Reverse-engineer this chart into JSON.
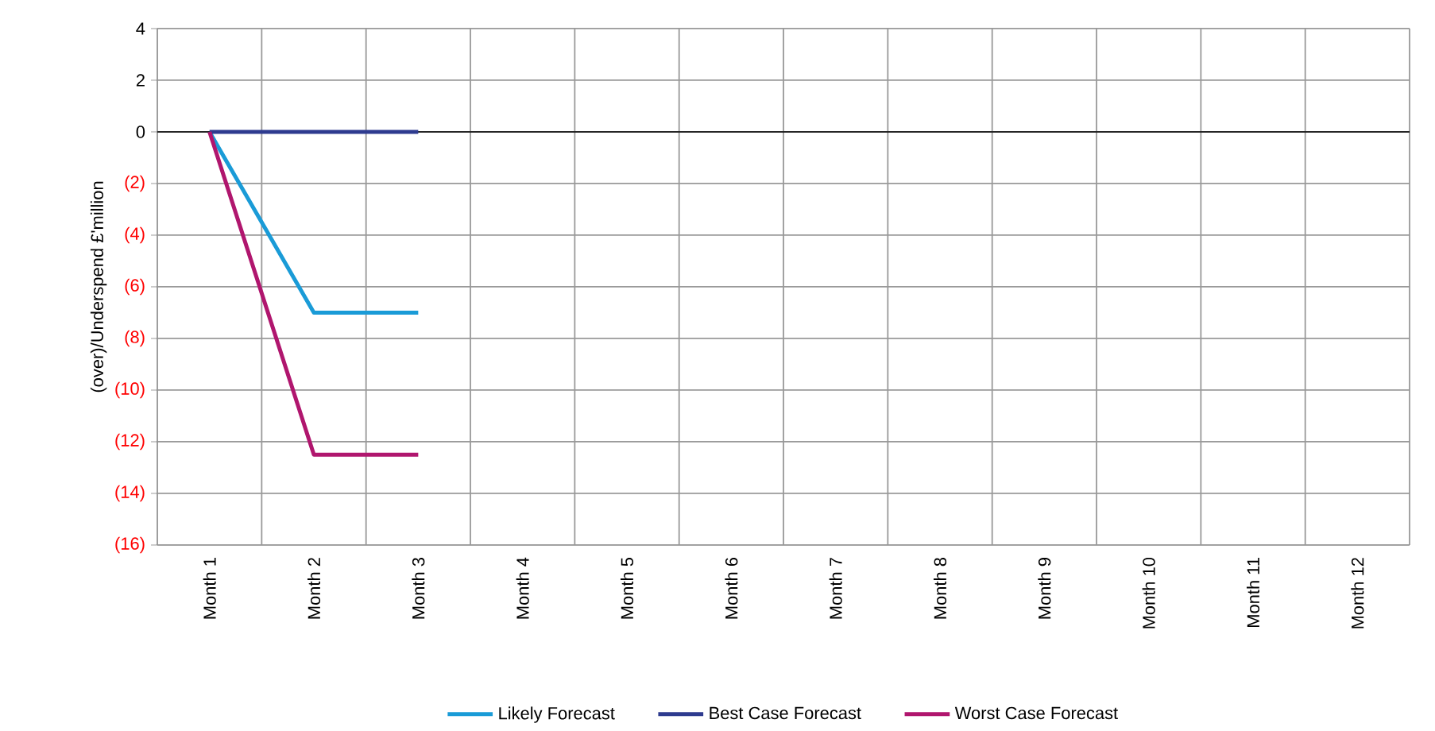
{
  "chart_data": {
    "type": "line",
    "ylabel": "(over)/Underspend £'million",
    "categories": [
      "Month 1",
      "Month 2",
      "Month 3",
      "Month 4",
      "Month 5",
      "Month 6",
      "Month 7",
      "Month 8",
      "Month 9",
      "Month 10",
      "Month 11",
      "Month 12"
    ],
    "series": [
      {
        "name": "Likely Forecast",
        "color": "#1a9bd7",
        "values": [
          0,
          -7,
          -7,
          null,
          null,
          null,
          null,
          null,
          null,
          null,
          null,
          null
        ]
      },
      {
        "name": "Best Case Forecast",
        "color": "#2e3b8f",
        "values": [
          0,
          0,
          0,
          null,
          null,
          null,
          null,
          null,
          null,
          null,
          null,
          null
        ]
      },
      {
        "name": "Worst Case Forecast",
        "color": "#b0166e",
        "values": [
          0,
          -12.5,
          -12.5,
          null,
          null,
          null,
          null,
          null,
          null,
          null,
          null,
          null
        ]
      }
    ],
    "ylim": [
      -16,
      4
    ],
    "yticks": [
      4,
      2,
      0,
      {
        "value": -2,
        "label": "(2)"
      },
      {
        "value": -4,
        "label": "(4)"
      },
      {
        "value": -6,
        "label": "(6)"
      },
      {
        "value": -8,
        "label": "(8)"
      },
      {
        "value": -10,
        "label": "(10)"
      },
      {
        "value": -12,
        "label": "(12)"
      },
      {
        "value": -14,
        "label": "(14)"
      },
      {
        "value": -16,
        "label": "(16)"
      }
    ],
    "ref_lines": [
      {
        "axis": "y",
        "value": 0,
        "color": "#000000"
      }
    ],
    "grid": true,
    "legend": "bottom",
    "marker": "none",
    "line_style": "solid"
  }
}
